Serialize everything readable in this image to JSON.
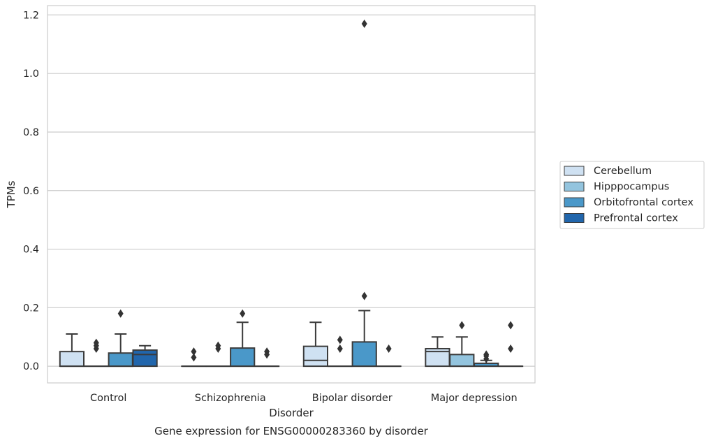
{
  "chart_data": {
    "type": "box",
    "title": "Gene expression for ENSG00000283360 by disorder",
    "xlabel": "Disorder",
    "ylabel": "TPMs",
    "ylim": [
      -0.057,
      1.232
    ],
    "yticks": [
      "0.0",
      "0.2",
      "0.4",
      "0.6",
      "0.8",
      "1.0",
      "1.2"
    ],
    "ytick_values": [
      0,
      0.2,
      0.4,
      0.6,
      0.8,
      1.0,
      1.2
    ],
    "grid": "horizontal",
    "legend_position": "right",
    "categories": [
      "Control",
      "Schizophrenia",
      "Bipolar disorder",
      "Major depression"
    ],
    "series": [
      {
        "name": "Cerebellum",
        "color": "#cfe1f2",
        "boxes": [
          {
            "q1": 0,
            "median": 0,
            "q3": 0.05,
            "whisker_low": 0,
            "whisker_high": 0.11,
            "outliers": []
          },
          {
            "q1": 0,
            "median": 0,
            "q3": 0,
            "whisker_low": 0,
            "whisker_high": 0,
            "outliers": [
              0.03,
              0.05
            ]
          },
          {
            "q1": 0,
            "median": 0.02,
            "q3": 0.068,
            "whisker_low": 0,
            "whisker_high": 0.15,
            "outliers": []
          },
          {
            "q1": 0,
            "median": 0.05,
            "q3": 0.06,
            "whisker_low": 0,
            "whisker_high": 0.1,
            "outliers": []
          }
        ]
      },
      {
        "name": "Hipppocampus",
        "color": "#93c4de",
        "boxes": [
          {
            "q1": 0,
            "median": 0,
            "q3": 0,
            "whisker_low": 0,
            "whisker_high": 0,
            "outliers": [
              0.06,
              0.07,
              0.08
            ]
          },
          {
            "q1": 0,
            "median": 0,
            "q3": 0,
            "whisker_low": 0,
            "whisker_high": 0,
            "outliers": [
              0.06,
              0.07
            ]
          },
          {
            "q1": 0,
            "median": 0,
            "q3": 0,
            "whisker_low": 0,
            "whisker_high": 0,
            "outliers": [
              0.06,
              0.09
            ]
          },
          {
            "q1": 0,
            "median": 0,
            "q3": 0.04,
            "whisker_low": 0,
            "whisker_high": 0.1,
            "outliers": [
              0.14
            ]
          }
        ]
      },
      {
        "name": "Orbitofrontal cortex",
        "color": "#4a98c9",
        "boxes": [
          {
            "q1": 0,
            "median": 0,
            "q3": 0.045,
            "whisker_low": 0,
            "whisker_high": 0.11,
            "outliers": [
              0.18
            ]
          },
          {
            "q1": 0,
            "median": 0,
            "q3": 0.062,
            "whisker_low": 0,
            "whisker_high": 0.15,
            "outliers": [
              0.18
            ]
          },
          {
            "q1": 0,
            "median": 0,
            "q3": 0.083,
            "whisker_low": 0,
            "whisker_high": 0.19,
            "outliers": [
              0.24,
              1.17
            ]
          },
          {
            "q1": 0,
            "median": 0,
            "q3": 0.01,
            "whisker_low": 0,
            "whisker_high": 0.02,
            "outliers": [
              0.025,
              0.035,
              0.04
            ]
          }
        ]
      },
      {
        "name": "Prefrontal cortex",
        "color": "#2166ac",
        "boxes": [
          {
            "q1": 0,
            "median": 0.04,
            "q3": 0.055,
            "whisker_low": 0,
            "whisker_high": 0.07,
            "outliers": []
          },
          {
            "q1": 0,
            "median": 0,
            "q3": 0,
            "whisker_low": 0,
            "whisker_high": 0,
            "outliers": [
              0.04,
              0.05
            ]
          },
          {
            "q1": 0,
            "median": 0,
            "q3": 0,
            "whisker_low": 0,
            "whisker_high": 0,
            "outliers": [
              0.06
            ]
          },
          {
            "q1": 0,
            "median": 0,
            "q3": 0,
            "whisker_low": 0,
            "whisker_high": 0,
            "outliers": [
              0.06,
              0.14
            ]
          }
        ]
      }
    ]
  }
}
